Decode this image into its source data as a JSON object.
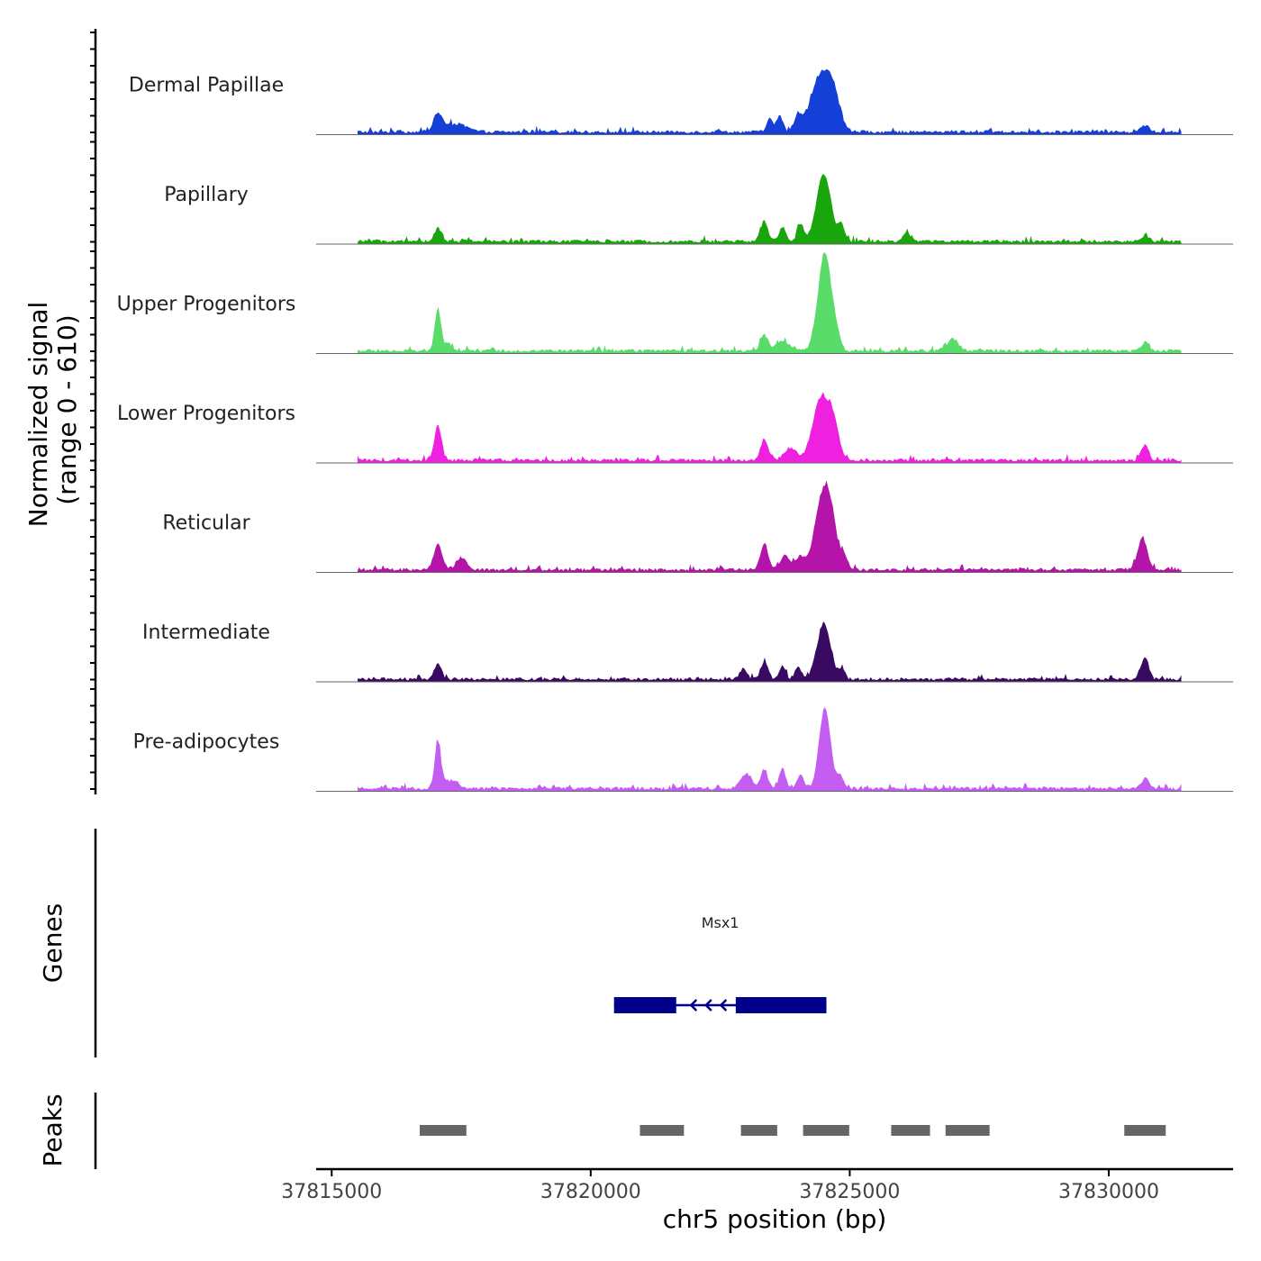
{
  "chart_data": {
    "type": "area",
    "chromosome": "chr5",
    "xlabel": "chr5 position (bp)",
    "xlim": [
      37814700,
      37832400
    ],
    "xticks": [
      37815000,
      37820000,
      37825000,
      37830000
    ],
    "xtick_labels": [
      "37815000",
      "37820000",
      "37825000",
      "37830000"
    ],
    "signal_axis_title": [
      "Normalized signal",
      "(range 0 - 610)"
    ],
    "signal_range": [
      0,
      610
    ],
    "signal_data_range": [
      37815500,
      37831400
    ],
    "tracks": [
      {
        "name": "Dermal Papillae",
        "color": "#1440d8",
        "peaks": [
          [
            37817050,
            0.17,
            90
          ],
          [
            37817400,
            0.08,
            200
          ],
          [
            37823450,
            0.13,
            60
          ],
          [
            37823650,
            0.16,
            60
          ],
          [
            37824000,
            0.14,
            80
          ],
          [
            37824450,
            0.57,
            190
          ],
          [
            37824700,
            0.25,
            120
          ],
          [
            37830700,
            0.06,
            80
          ]
        ]
      },
      {
        "name": "Papillary",
        "color": "#18a60c",
        "peaks": [
          [
            37817050,
            0.13,
            70
          ],
          [
            37823350,
            0.21,
            70
          ],
          [
            37823700,
            0.14,
            60
          ],
          [
            37824050,
            0.18,
            60
          ],
          [
            37824500,
            0.67,
            140
          ],
          [
            37824850,
            0.15,
            60
          ],
          [
            37826100,
            0.08,
            70
          ],
          [
            37830700,
            0.06,
            70
          ]
        ]
      },
      {
        "name": "Upper Progenitors",
        "color": "#5adc6a",
        "peaks": [
          [
            37817050,
            0.41,
            60
          ],
          [
            37817250,
            0.07,
            80
          ],
          [
            37823350,
            0.15,
            70
          ],
          [
            37823700,
            0.1,
            120
          ],
          [
            37824520,
            0.98,
            130
          ],
          [
            37824750,
            0.1,
            60
          ],
          [
            37827000,
            0.12,
            100
          ],
          [
            37830700,
            0.09,
            70
          ]
        ]
      },
      {
        "name": "Lower Progenitors",
        "color": "#f020e0",
        "peaks": [
          [
            37817050,
            0.34,
            70
          ],
          [
            37823350,
            0.21,
            70
          ],
          [
            37823850,
            0.12,
            120
          ],
          [
            37824450,
            0.62,
            160
          ],
          [
            37824700,
            0.27,
            100
          ],
          [
            37830700,
            0.15,
            70
          ]
        ]
      },
      {
        "name": "Reticular",
        "color": "#b414a8",
        "peaks": [
          [
            37817050,
            0.25,
            80
          ],
          [
            37817500,
            0.12,
            100
          ],
          [
            37823350,
            0.27,
            70
          ],
          [
            37823750,
            0.14,
            90
          ],
          [
            37824050,
            0.13,
            90
          ],
          [
            37824400,
            0.45,
            120
          ],
          [
            37824600,
            0.68,
            130
          ],
          [
            37824900,
            0.12,
            60
          ],
          [
            37830650,
            0.32,
            90
          ]
        ]
      },
      {
        "name": "Intermediate",
        "color": "#3a0a62",
        "peaks": [
          [
            37817050,
            0.15,
            70
          ],
          [
            37822950,
            0.11,
            70
          ],
          [
            37823350,
            0.17,
            70
          ],
          [
            37823700,
            0.14,
            60
          ],
          [
            37824000,
            0.13,
            60
          ],
          [
            37824500,
            0.56,
            130
          ],
          [
            37824850,
            0.09,
            60
          ],
          [
            37830700,
            0.22,
            70
          ]
        ]
      },
      {
        "name": "Pre-adipocytes",
        "color": "#c45ef2",
        "peaks": [
          [
            37817050,
            0.47,
            60
          ],
          [
            37817300,
            0.08,
            120
          ],
          [
            37823000,
            0.15,
            110
          ],
          [
            37823350,
            0.18,
            70
          ],
          [
            37823700,
            0.2,
            60
          ],
          [
            37824050,
            0.15,
            60
          ],
          [
            37824520,
            0.8,
            110
          ],
          [
            37824820,
            0.12,
            60
          ],
          [
            37830700,
            0.1,
            70
          ]
        ]
      }
    ],
    "genes_axis_title": "Genes",
    "gene": {
      "name": "Msx1",
      "strand": "-",
      "color": "#00008b",
      "start": 37820450,
      "end": 37824550,
      "exons": [
        [
          37820450,
          37821650
        ],
        [
          37822800,
          37824550
        ]
      ]
    },
    "peaks_axis_title": "Peaks",
    "peak_color": "#666666",
    "peak_regions": [
      [
        37816700,
        37817600
      ],
      [
        37820950,
        37821800
      ],
      [
        37822900,
        37823600
      ],
      [
        37824100,
        37824990
      ],
      [
        37825800,
        37826550
      ],
      [
        37826850,
        37827700
      ],
      [
        37830300,
        37831100
      ]
    ]
  }
}
